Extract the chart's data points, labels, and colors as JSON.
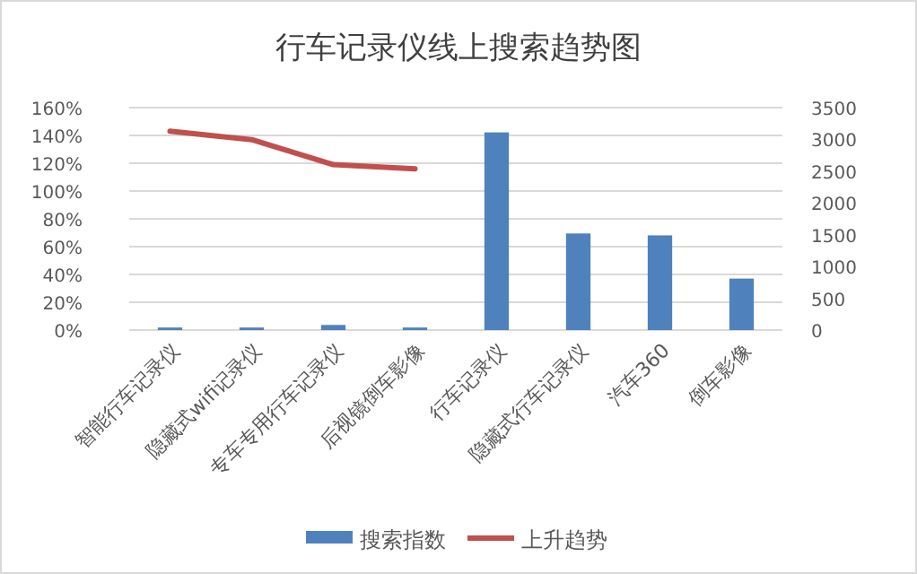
{
  "chart_data": {
    "type": "bar",
    "title": "行车记录仪线上搜索趋势图",
    "categories": [
      "智能行车记录仪",
      "隐藏式wifi记录仪",
      "专车专用行车记录仪",
      "后视镜倒车影像",
      "行车记录仪",
      "隐藏式行车记录仪",
      "汽车360",
      "倒车影像"
    ],
    "series": [
      {
        "name": "搜索指数",
        "axis": "y2",
        "color": "#4f81bd",
        "values": [
          40,
          40,
          80,
          40,
          3110,
          1520,
          1490,
          810
        ]
      },
      {
        "name": "上升趋势",
        "type": "line",
        "axis": "y",
        "color": "#c0504d",
        "values": [
          143,
          137,
          119,
          116,
          null,
          null,
          null,
          null
        ]
      }
    ],
    "ylim": [
      0,
      160
    ],
    "yticks": [
      {
        "value": 0,
        "label": "0%"
      },
      {
        "value": 20,
        "label": "20%"
      },
      {
        "value": 40,
        "label": "40%"
      },
      {
        "value": 60,
        "label": "60%"
      },
      {
        "value": 80,
        "label": "80%"
      },
      {
        "value": 100,
        "label": "100%"
      },
      {
        "value": 120,
        "label": "120%"
      },
      {
        "value": 140,
        "label": "140%"
      },
      {
        "value": 160,
        "label": "160%"
      }
    ],
    "y2lim": [
      0,
      3500
    ],
    "y2ticks": [
      0,
      500,
      1000,
      1500,
      2000,
      2500,
      3000,
      3500
    ],
    "grid": "y",
    "legend": "bottom",
    "marker": "none",
    "line_style": "solid"
  }
}
